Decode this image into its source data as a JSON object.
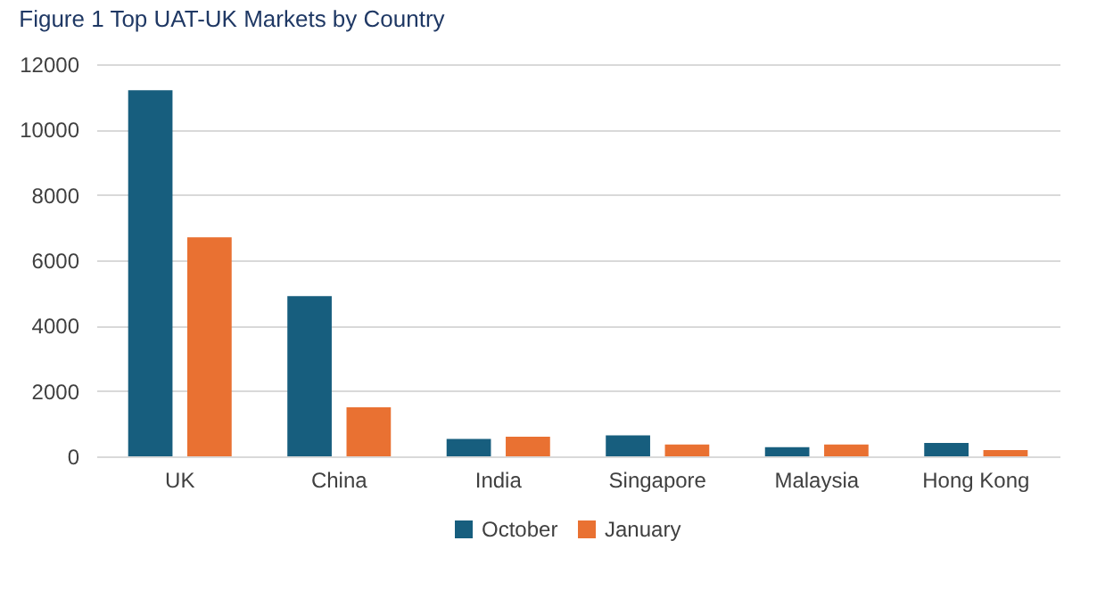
{
  "chart_data": {
    "type": "bar",
    "title": "Figure 1 Top UAT-UK Markets by Country",
    "categories": [
      "UK",
      "China",
      "India",
      "Singapore",
      "Malaysia",
      "Hong Kong"
    ],
    "series": [
      {
        "name": "October",
        "color": "#175e7e",
        "values": [
          11200,
          4900,
          530,
          640,
          280,
          410
        ]
      },
      {
        "name": "January",
        "color": "#e97132",
        "values": [
          6700,
          1500,
          600,
          360,
          360,
          190
        ]
      }
    ],
    "ylim": [
      0,
      12000
    ],
    "yticks": [
      0,
      2000,
      4000,
      6000,
      8000,
      10000,
      12000
    ],
    "grid": "y",
    "legend": "bottom"
  }
}
